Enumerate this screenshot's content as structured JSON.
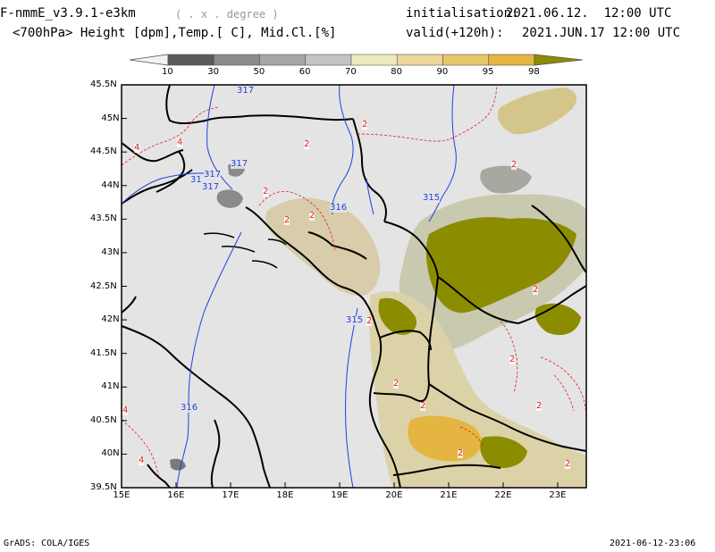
{
  "header": {
    "model": "F-nmmE_v3.9.1-e3km",
    "grid": "( . x . degree )",
    "init_label": "initialisation:",
    "init_value": "2021.06.12.  12:00 UTC",
    "subtitle": "<700hPa> Height [dpm],Temp.[ C], Mid.Cl.[%]",
    "valid_label": "valid(+120h):",
    "valid_value": "2021.JUN.17 12:00 UTC"
  },
  "colorbar": {
    "labels": [
      "10",
      "30",
      "50",
      "60",
      "70",
      "80",
      "90",
      "95",
      "98"
    ],
    "colors": [
      "#5a5a5a",
      "#8a8a8a",
      "#a6a6a6",
      "#c4c4c4",
      "#eeeac0",
      "#ecd69c",
      "#e8c66a",
      "#e4b540",
      "#8c8c00"
    ]
  },
  "map": {
    "lat_labels": [
      "45.5N",
      "45N",
      "44.5N",
      "44N",
      "43.5N",
      "43N",
      "42.5N",
      "42N",
      "41.5N",
      "41N",
      "40.5N",
      "40N",
      "39.5N"
    ],
    "lon_labels": [
      "15E",
      "16E",
      "17E",
      "18E",
      "19E",
      "20E",
      "21E",
      "22E",
      "23E"
    ],
    "height_contour_labels": [
      "317",
      "31",
      "317",
      "317",
      "317",
      "316",
      "315",
      "315",
      "316"
    ],
    "temp_contour_labels": [
      "4",
      "4",
      "2",
      "2",
      "2",
      "4",
      "4",
      "2",
      "2",
      "2",
      "2",
      "2",
      "2",
      "2",
      "2",
      "2",
      "2",
      "2"
    ],
    "background_color": "#e4e4e4",
    "coast_color": "#000000",
    "height_color": "#2040e0",
    "temp_color": "#e02020"
  },
  "footer": {
    "left": "GrADS: COLA/IGES",
    "right": "2021-06-12-23:06"
  }
}
